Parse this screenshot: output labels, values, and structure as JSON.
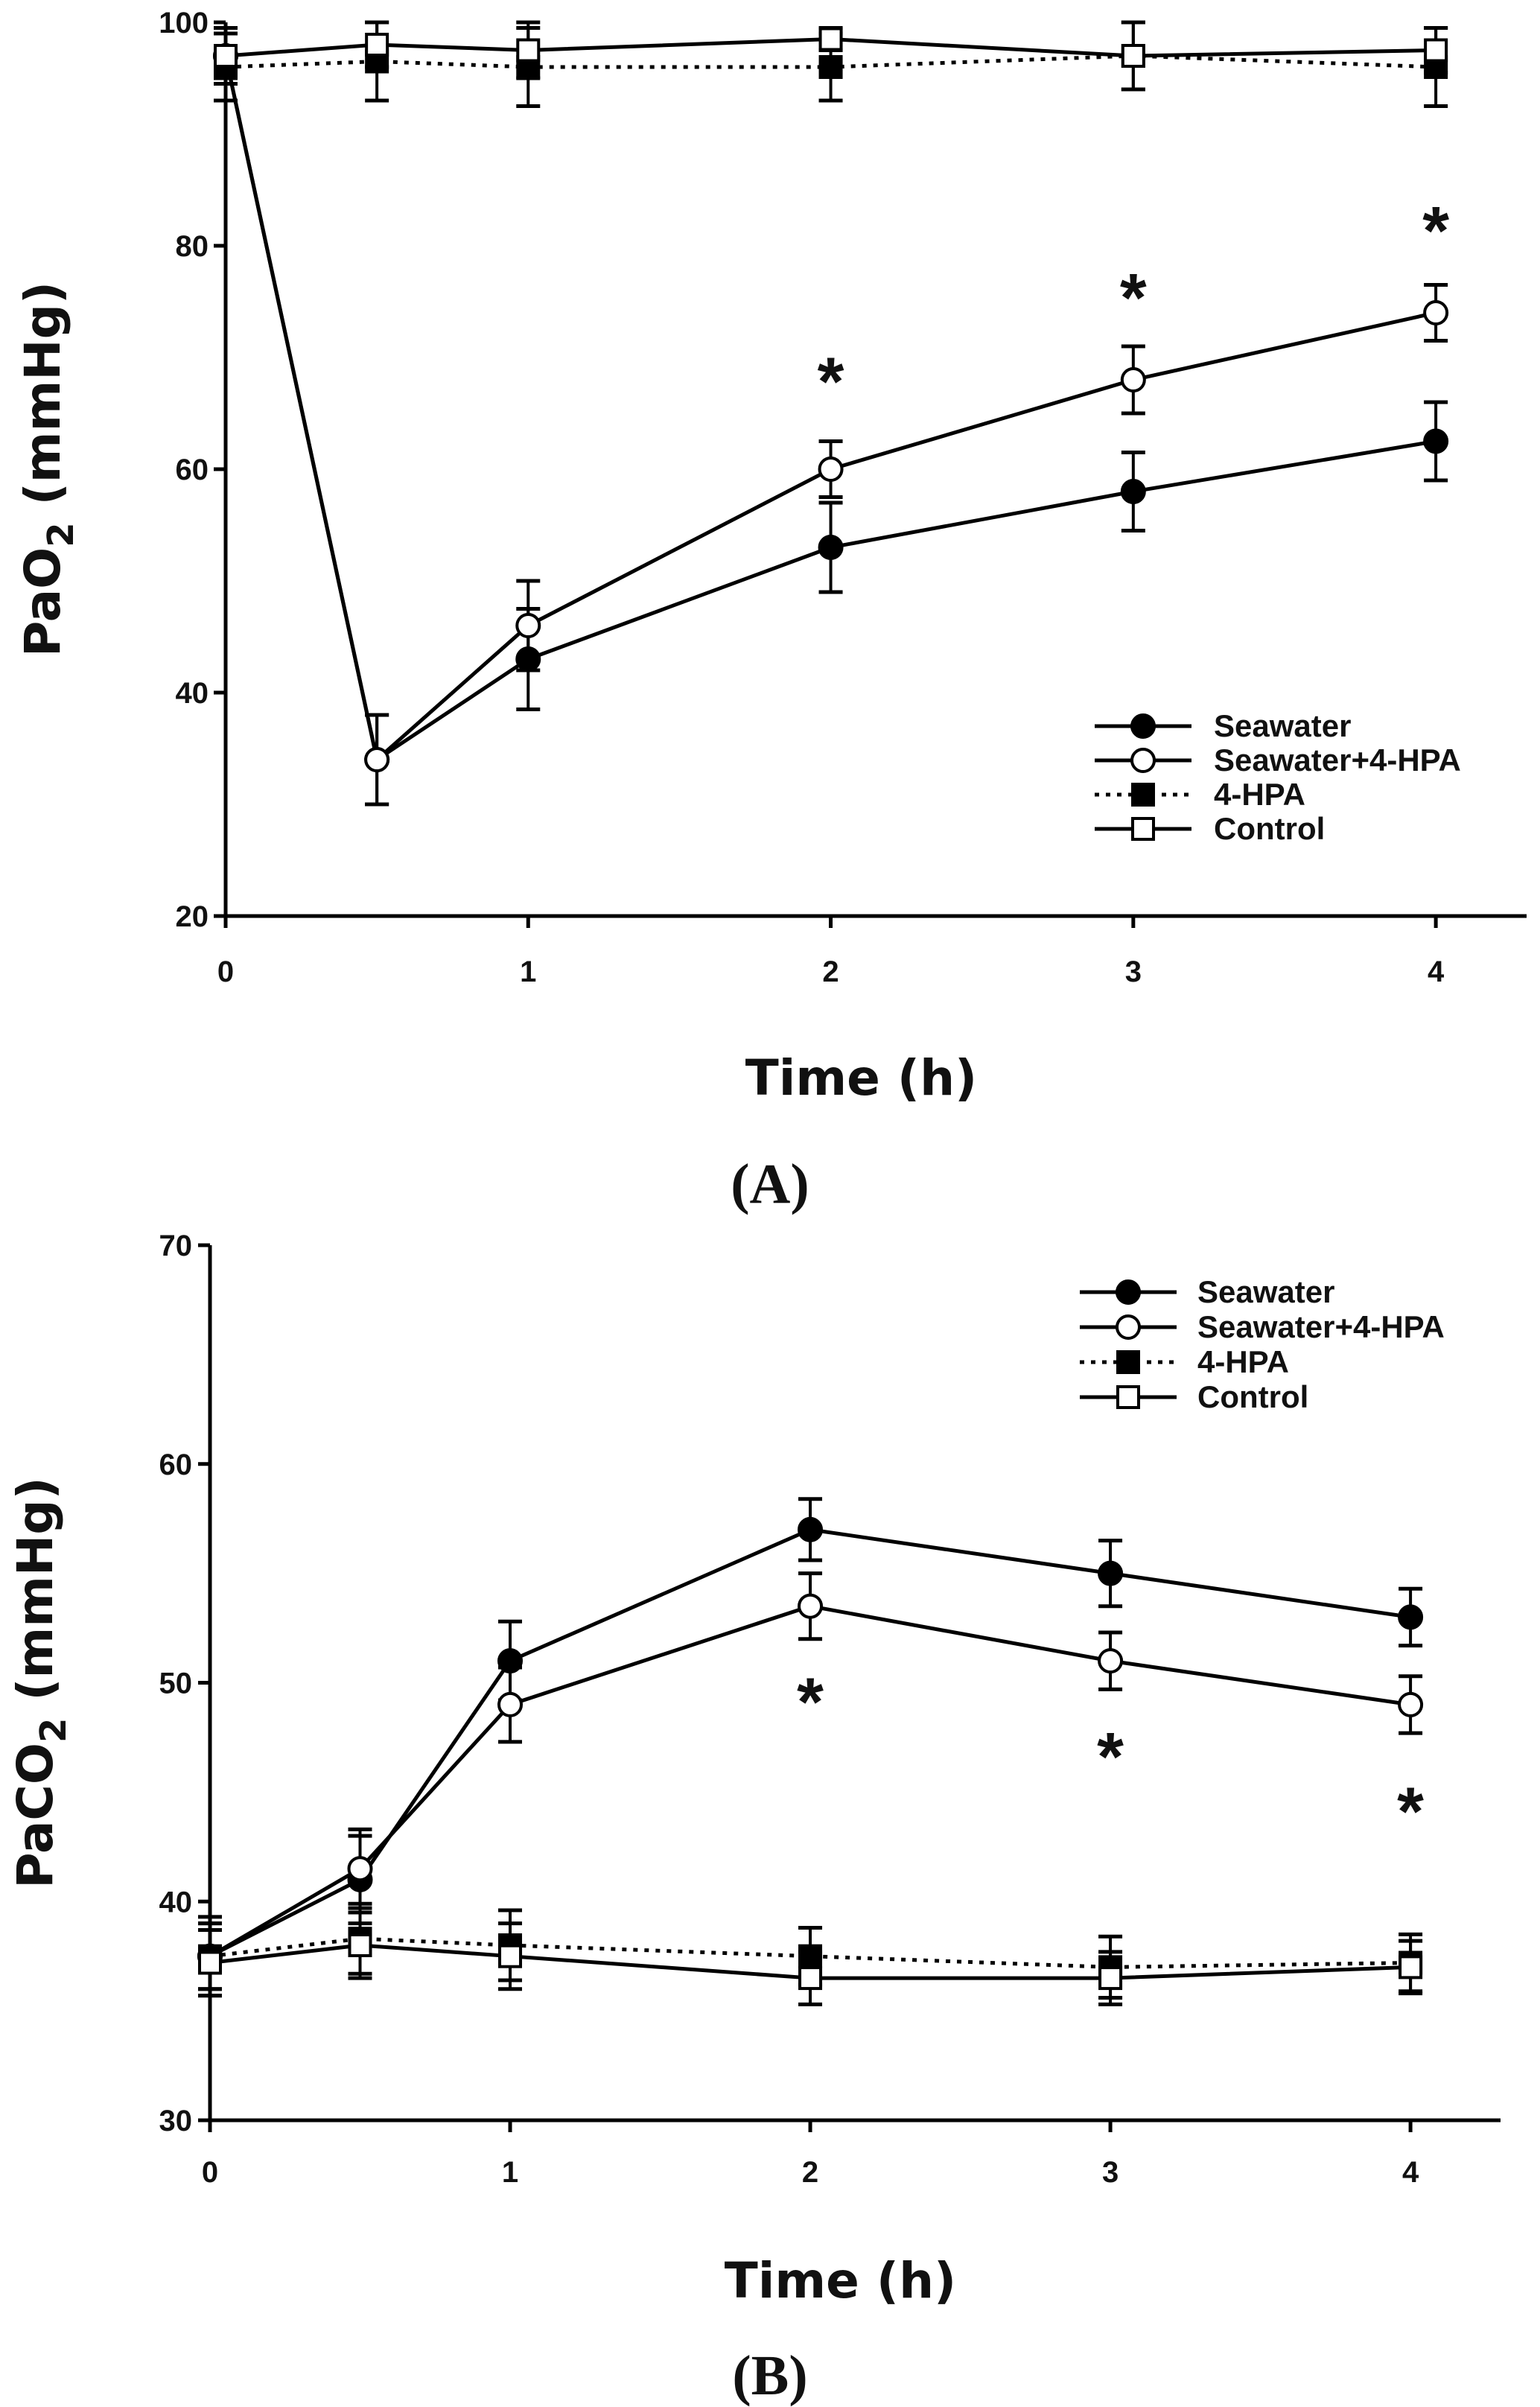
{
  "chart_data": [
    {
      "id": "A",
      "type": "line",
      "panel_label": "(A)",
      "xlabel": "Time (h)",
      "ylabel": "PaO2 (mmHg)",
      "ylabel_parts": [
        "PaO",
        "2",
        " (mmHg)"
      ],
      "xlim": [
        0,
        4.3
      ],
      "ylim": [
        20,
        100
      ],
      "xticks": [
        0,
        1,
        2,
        3,
        4
      ],
      "xtick_labels": [
        "0",
        "1",
        "2",
        "3",
        "4"
      ],
      "yticks": [
        20,
        40,
        60,
        80,
        100
      ],
      "ytick_labels": [
        "20",
        "40",
        "60",
        "80",
        "100"
      ],
      "x": [
        0,
        0.5,
        1,
        2,
        3,
        4
      ],
      "legend": {
        "position": "bottom-right"
      },
      "series": [
        {
          "name": "Seawater",
          "marker": "circle",
          "filled": true,
          "line": "solid",
          "values": [
            97,
            34,
            43,
            53,
            58,
            62.5
          ],
          "errors": [
            2,
            4,
            4.5,
            4,
            3.5,
            3.5
          ]
        },
        {
          "name": "Seawater+4-HPA",
          "marker": "circle",
          "filled": false,
          "line": "solid",
          "values": [
            97,
            34,
            46,
            60,
            68,
            74
          ],
          "errors": [
            2,
            4,
            4,
            2.5,
            3,
            2.5
          ]
        },
        {
          "name": "4-HPA",
          "marker": "square",
          "filled": true,
          "line": "dotted",
          "values": [
            96,
            96.5,
            96,
            96,
            97,
            96
          ],
          "errors": [
            3,
            3.5,
            3.5,
            3,
            3,
            3.5
          ]
        },
        {
          "name": "Control",
          "marker": "square",
          "filled": false,
          "line": "solid",
          "values": [
            97,
            98,
            97.5,
            98.5,
            97,
            97.5
          ],
          "errors": [
            2.5,
            2,
            2.5,
            1,
            3,
            2
          ]
        }
      ],
      "annotations": [
        {
          "text": "*",
          "x": 2,
          "y": 68
        },
        {
          "text": "*",
          "x": 3,
          "y": 75.5
        },
        {
          "text": "*",
          "x": 4,
          "y": 81.5
        }
      ]
    },
    {
      "id": "B",
      "type": "line",
      "panel_label": "(B)",
      "xlabel": "Time (h)",
      "ylabel": "PaCO2 (mmHg)",
      "ylabel_parts": [
        "PaCO",
        "2",
        " (mmHg)"
      ],
      "xlim": [
        0,
        4.3
      ],
      "ylim": [
        30,
        70
      ],
      "xticks": [
        0,
        1,
        2,
        3,
        4
      ],
      "xtick_labels": [
        "0",
        "1",
        "2",
        "3",
        "4"
      ],
      "yticks": [
        30,
        40,
        50,
        60,
        70
      ],
      "ytick_labels": [
        "30",
        "40",
        "50",
        "60",
        "70"
      ],
      "x": [
        0,
        0.5,
        1,
        2,
        3,
        4
      ],
      "legend": {
        "position": "top-right"
      },
      "series": [
        {
          "name": "Seawater",
          "marker": "circle",
          "filled": true,
          "line": "solid",
          "values": [
            37.5,
            41,
            51,
            57,
            55,
            53
          ],
          "errors": [
            1.5,
            2,
            1.8,
            1.4,
            1.5,
            1.3
          ]
        },
        {
          "name": "Seawater+4-HPA",
          "marker": "circle",
          "filled": false,
          "line": "solid",
          "values": [
            37.5,
            41.5,
            49,
            53.5,
            51,
            49
          ],
          "errors": [
            1.8,
            1.8,
            1.7,
            1.5,
            1.3,
            1.3
          ]
        },
        {
          "name": "4-HPA",
          "marker": "square",
          "filled": true,
          "line": "dotted",
          "values": [
            37.5,
            38.3,
            38,
            37.5,
            37,
            37.2
          ],
          "errors": [
            1.5,
            1.6,
            1.6,
            1.3,
            1.4,
            1.3
          ]
        },
        {
          "name": "Control",
          "marker": "square",
          "filled": false,
          "line": "solid",
          "values": [
            37.2,
            38,
            37.5,
            36.5,
            36.5,
            37
          ],
          "errors": [
            1.5,
            1.5,
            1.5,
            1.2,
            1.2,
            1.2
          ]
        }
      ],
      "annotations": [
        {
          "text": "*",
          "x": 2,
          "y": 49.2
        },
        {
          "text": "*",
          "x": 3,
          "y": 46.7
        },
        {
          "text": "*",
          "x": 4,
          "y": 44.2
        }
      ]
    }
  ]
}
